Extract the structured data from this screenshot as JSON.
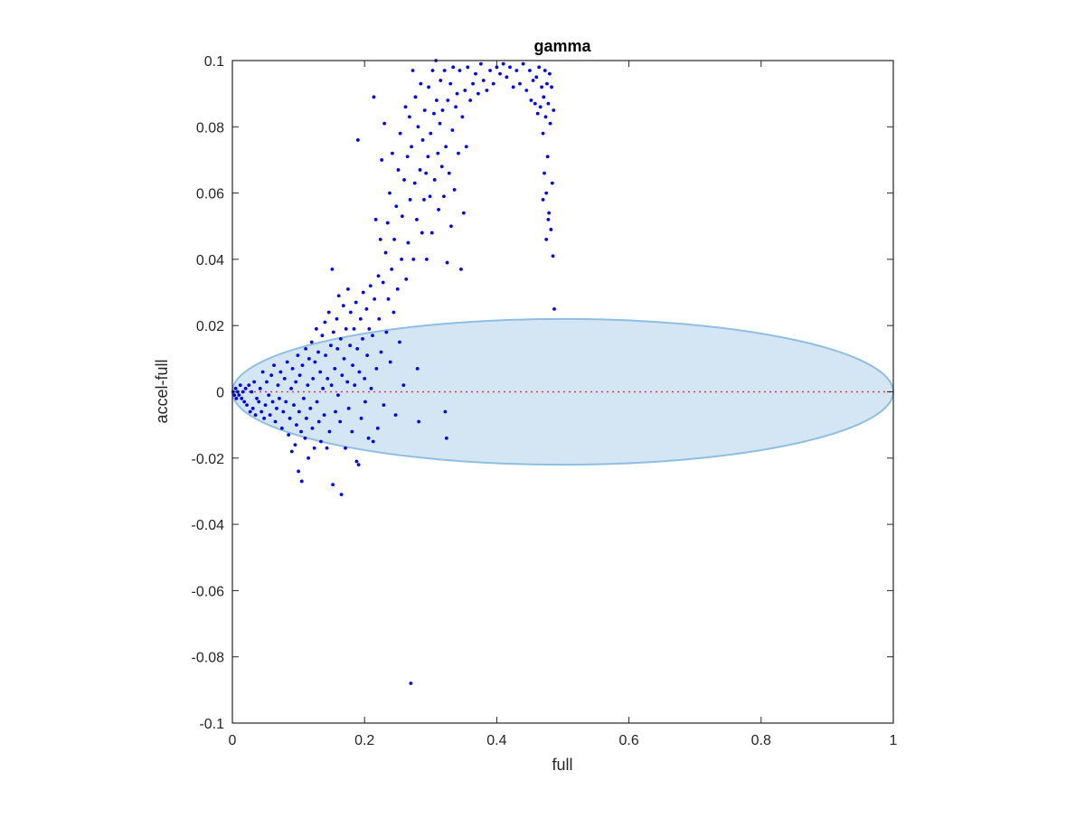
{
  "chart_data": {
    "type": "scatter",
    "title": "gamma",
    "xlabel": "full",
    "ylabel": "accel-full",
    "xlim": [
      0,
      1
    ],
    "ylim": [
      -0.1,
      0.1
    ],
    "xticks": [
      "0",
      "0.2",
      "0.4",
      "0.6",
      "0.8",
      "1"
    ],
    "xtick_values": [
      0,
      0.2,
      0.4,
      0.6,
      0.8,
      1
    ],
    "yticks": [
      "0.1",
      "0.08",
      "0.06",
      "0.04",
      "0.02",
      "0",
      "-0.02",
      "-0.04",
      "-0.06",
      "-0.08",
      "-0.1"
    ],
    "ytick_values": [
      0.1,
      0.08,
      0.06,
      0.04,
      0.02,
      0,
      -0.02,
      -0.04,
      -0.06,
      -0.08,
      -0.1
    ],
    "grid": false,
    "reference_line": {
      "y": 0,
      "x_range": [
        0,
        1
      ],
      "color": "#e8383d",
      "style": "dotted"
    },
    "ellipse": {
      "center": [
        0.5,
        0
      ],
      "x_radius": 0.5,
      "y_radius": 0.022,
      "fill": "#d4e6f4",
      "edge": "#8ebfe2"
    },
    "series": [
      {
        "color": "#0000ff",
        "points": [
          [
            0.001,
            0.0
          ],
          [
            0.003,
            -0.001
          ],
          [
            0.005,
            0.001
          ],
          [
            0.006,
            -0.002
          ],
          [
            0.008,
            0.0
          ],
          [
            0.01,
            -0.001
          ],
          [
            0.012,
            0.002
          ],
          [
            0.014,
            -0.002
          ],
          [
            0.016,
            0.0
          ],
          [
            0.018,
            -0.003
          ],
          [
            0.02,
            0.001
          ],
          [
            0.022,
            -0.004
          ],
          [
            0.025,
            0.002
          ],
          [
            0.027,
            -0.006
          ],
          [
            0.029,
            0.0
          ],
          [
            0.031,
            -0.005
          ],
          [
            0.033,
            0.003
          ],
          [
            0.035,
            -0.007
          ],
          [
            0.037,
            -0.002
          ],
          [
            0.04,
            -0.003
          ],
          [
            0.042,
            0.001
          ],
          [
            0.044,
            -0.006
          ],
          [
            0.046,
            0.006
          ],
          [
            0.048,
            -0.008
          ],
          [
            0.05,
            -0.004
          ],
          [
            0.052,
            0.003
          ],
          [
            0.055,
            -0.001
          ],
          [
            0.057,
            -0.007
          ],
          [
            0.059,
            0.005
          ],
          [
            0.061,
            -0.003
          ],
          [
            0.063,
            0.008
          ],
          [
            0.065,
            -0.009
          ],
          [
            0.067,
            -0.005
          ],
          [
            0.069,
            0.002
          ],
          [
            0.071,
            -0.002
          ],
          [
            0.073,
            0.006
          ],
          [
            0.075,
            -0.011
          ],
          [
            0.077,
            -0.006
          ],
          [
            0.079,
            0.004
          ],
          [
            0.081,
            -0.003
          ],
          [
            0.083,
            0.009
          ],
          [
            0.085,
            -0.013
          ],
          [
            0.087,
            -0.008
          ],
          [
            0.089,
            0.001
          ],
          [
            0.09,
            -0.018
          ],
          [
            0.091,
            0.007
          ],
          [
            0.093,
            -0.004
          ],
          [
            0.095,
            -0.016
          ],
          [
            0.096,
            0.003
          ],
          [
            0.097,
            -0.01
          ],
          [
            0.099,
            0.011
          ],
          [
            0.1,
            -0.024
          ],
          [
            0.101,
            -0.006
          ],
          [
            0.102,
            0.005
          ],
          [
            0.104,
            -0.012
          ],
          [
            0.105,
            -0.027
          ],
          [
            0.106,
            0.008
          ],
          [
            0.108,
            -0.002
          ],
          [
            0.11,
            -0.014
          ],
          [
            0.111,
            0.013
          ],
          [
            0.112,
            -0.008
          ],
          [
            0.114,
            0.002
          ],
          [
            0.115,
            -0.02
          ],
          [
            0.116,
            0.01
          ],
          [
            0.118,
            -0.005
          ],
          [
            0.12,
            0.015
          ],
          [
            0.121,
            -0.011
          ],
          [
            0.122,
            0.004
          ],
          [
            0.124,
            -0.017
          ],
          [
            0.125,
            0.009
          ],
          [
            0.127,
            0.019
          ],
          [
            0.128,
            -0.003
          ],
          [
            0.13,
            0.012
          ],
          [
            0.131,
            -0.009
          ],
          [
            0.133,
            0.006
          ],
          [
            0.134,
            -0.015
          ],
          [
            0.136,
            0.017
          ],
          [
            0.137,
            0.001
          ],
          [
            0.139,
            -0.007
          ],
          [
            0.14,
            0.021
          ],
          [
            0.141,
            0.011
          ],
          [
            0.143,
            -0.017
          ],
          [
            0.144,
            0.004
          ],
          [
            0.146,
            0.024
          ],
          [
            0.147,
            -0.012
          ],
          [
            0.149,
            0.014
          ],
          [
            0.15,
            0.002
          ],
          [
            0.151,
            0.037
          ],
          [
            0.152,
            -0.028
          ],
          [
            0.153,
            0.018
          ],
          [
            0.155,
            0.007
          ],
          [
            0.156,
            -0.006
          ],
          [
            0.158,
            0.022
          ],
          [
            0.159,
            0.013
          ],
          [
            0.16,
            -0.001
          ],
          [
            0.161,
            0.029
          ],
          [
            0.163,
            -0.009
          ],
          [
            0.164,
            0.016
          ],
          [
            0.165,
            -0.031
          ],
          [
            0.166,
            0.005
          ],
          [
            0.168,
            0.026
          ],
          [
            0.169,
            0.01
          ],
          [
            0.171,
            -0.017
          ],
          [
            0.172,
            0.019
          ],
          [
            0.174,
            0.003
          ],
          [
            0.175,
            0.031
          ],
          [
            0.176,
            -0.005
          ],
          [
            0.178,
            0.014
          ],
          [
            0.179,
            0.024
          ],
          [
            0.181,
            -0.012
          ],
          [
            0.182,
            0.008
          ],
          [
            0.184,
            0.019
          ],
          [
            0.185,
            0.002
          ],
          [
            0.187,
            0.027
          ],
          [
            0.188,
            -0.021
          ],
          [
            0.189,
            0.013
          ],
          [
            0.19,
            0.076
          ],
          [
            0.191,
            -0.022
          ],
          [
            0.192,
            0.006
          ],
          [
            0.194,
            0.022
          ],
          [
            0.195,
            -0.008
          ],
          [
            0.197,
            0.016
          ],
          [
            0.198,
            0.03
          ],
          [
            0.2,
            0.004
          ],
          [
            0.201,
            -0.003
          ],
          [
            0.203,
            0.025
          ],
          [
            0.204,
            0.011
          ],
          [
            0.206,
            -0.014
          ],
          [
            0.207,
            0.019
          ],
          [
            0.209,
            0.032
          ],
          [
            0.21,
            0.001
          ],
          [
            0.212,
            0.017
          ],
          [
            0.213,
            -0.015
          ],
          [
            0.214,
            0.089
          ],
          [
            0.215,
            0.028
          ],
          [
            0.217,
            0.052
          ],
          [
            0.218,
            0.007
          ],
          [
            0.22,
            -0.011
          ],
          [
            0.221,
            0.035
          ],
          [
            0.222,
            0.022
          ],
          [
            0.224,
            0.046
          ],
          [
            0.225,
            0.012
          ],
          [
            0.226,
            0.07
          ],
          [
            0.228,
            0.033
          ],
          [
            0.229,
            -0.004
          ],
          [
            0.23,
            0.081
          ],
          [
            0.232,
            0.042
          ],
          [
            0.233,
            0.018
          ],
          [
            0.235,
            0.051
          ],
          [
            0.236,
            0.028
          ],
          [
            0.238,
            0.06
          ],
          [
            0.239,
            0.009
          ],
          [
            0.241,
            0.037
          ],
          [
            0.242,
            0.072
          ],
          [
            0.244,
            0.024
          ],
          [
            0.245,
            0.046
          ],
          [
            0.247,
            -0.007
          ],
          [
            0.248,
            0.056
          ],
          [
            0.25,
            0.031
          ],
          [
            0.251,
            0.067
          ],
          [
            0.253,
            0.015
          ],
          [
            0.254,
            0.078
          ],
          [
            0.256,
            0.04
          ],
          [
            0.257,
            0.053
          ],
          [
            0.259,
            0.002
          ],
          [
            0.26,
            0.064
          ],
          [
            0.262,
            0.086
          ],
          [
            0.263,
            0.034
          ],
          [
            0.265,
            0.071
          ],
          [
            0.266,
            0.045
          ],
          [
            0.268,
            0.083
          ],
          [
            0.269,
            0.058
          ],
          [
            0.27,
            -0.088
          ],
          [
            0.271,
            0.074
          ],
          [
            0.273,
            0.097
          ],
          [
            0.274,
            0.04
          ],
          [
            0.276,
            0.063
          ],
          [
            0.277,
            0.089
          ],
          [
            0.279,
            0.052
          ],
          [
            0.28,
            0.007
          ],
          [
            0.281,
            0.08
          ],
          [
            0.282,
            -0.009
          ],
          [
            0.284,
            0.067
          ],
          [
            0.285,
            0.093
          ],
          [
            0.287,
            0.048
          ],
          [
            0.288,
            0.076
          ],
          [
            0.29,
            0.058
          ],
          [
            0.291,
            0.085
          ],
          [
            0.293,
            0.066
          ],
          [
            0.294,
            0.04
          ],
          [
            0.296,
            0.071
          ],
          [
            0.297,
            0.092
          ],
          [
            0.299,
            0.059
          ],
          [
            0.3,
            0.078
          ],
          [
            0.302,
            0.048
          ],
          [
            0.303,
            0.097
          ],
          [
            0.305,
            0.084
          ],
          [
            0.306,
            0.064
          ],
          [
            0.308,
            0.1
          ],
          [
            0.309,
            0.088
          ],
          [
            0.311,
            0.072
          ],
          [
            0.312,
            0.055
          ],
          [
            0.314,
            0.081
          ],
          [
            0.315,
            0.094
          ],
          [
            0.317,
            0.068
          ],
          [
            0.318,
            0.085
          ],
          [
            0.32,
            0.059
          ],
          [
            0.321,
            0.097
          ],
          [
            0.322,
            -0.006
          ],
          [
            0.323,
            0.074
          ],
          [
            0.324,
            -0.014
          ],
          [
            0.325,
            0.039
          ],
          [
            0.326,
            0.088
          ],
          [
            0.328,
            0.066
          ],
          [
            0.33,
            0.093
          ],
          [
            0.331,
            0.05
          ],
          [
            0.333,
            0.079
          ],
          [
            0.334,
            0.098
          ],
          [
            0.336,
            0.061
          ],
          [
            0.338,
            0.086
          ],
          [
            0.34,
            0.09
          ],
          [
            0.342,
            0.072
          ],
          [
            0.344,
            0.097
          ],
          [
            0.346,
            0.037
          ],
          [
            0.348,
            0.083
          ],
          [
            0.35,
            0.054
          ],
          [
            0.352,
            0.091
          ],
          [
            0.354,
            0.074
          ],
          [
            0.356,
            0.098
          ],
          [
            0.36,
            0.088
          ],
          [
            0.364,
            0.093
          ],
          [
            0.368,
            0.096
          ],
          [
            0.372,
            0.09
          ],
          [
            0.376,
            0.099
          ],
          [
            0.38,
            0.094
          ],
          [
            0.385,
            0.091
          ],
          [
            0.39,
            0.097
          ],
          [
            0.395,
            0.093
          ],
          [
            0.4,
            0.098
          ],
          [
            0.405,
            0.096
          ],
          [
            0.41,
            0.099
          ],
          [
            0.415,
            0.095
          ],
          [
            0.42,
            0.098
          ],
          [
            0.425,
            0.092
          ],
          [
            0.43,
            0.097
          ],
          [
            0.435,
            0.093
          ],
          [
            0.44,
            0.099
          ],
          [
            0.445,
            0.091
          ],
          [
            0.45,
            0.097
          ],
          [
            0.452,
            0.088
          ],
          [
            0.455,
            0.094
          ],
          [
            0.458,
            0.087
          ],
          [
            0.46,
            0.095
          ],
          [
            0.462,
            0.084
          ],
          [
            0.464,
            0.098
          ],
          [
            0.466,
            0.086
          ],
          [
            0.468,
            0.092
          ],
          [
            0.47,
            0.078
          ],
          [
            0.471,
            0.089
          ],
          [
            0.472,
            0.066
          ],
          [
            0.473,
            0.097
          ],
          [
            0.474,
            0.083
          ],
          [
            0.475,
            0.06
          ],
          [
            0.476,
            0.093
          ],
          [
            0.477,
            0.071
          ],
          [
            0.478,
            0.087
          ],
          [
            0.479,
            0.054
          ],
          [
            0.48,
            0.096
          ],
          [
            0.481,
            0.081
          ],
          [
            0.482,
            0.049
          ],
          [
            0.483,
            0.092
          ],
          [
            0.484,
            0.063
          ],
          [
            0.485,
            0.041
          ],
          [
            0.486,
            0.085
          ],
          [
            0.487,
            0.025
          ],
          [
            0.475,
            0.046
          ],
          [
            0.47,
            0.058
          ],
          [
            0.478,
            0.052
          ]
        ]
      }
    ]
  }
}
